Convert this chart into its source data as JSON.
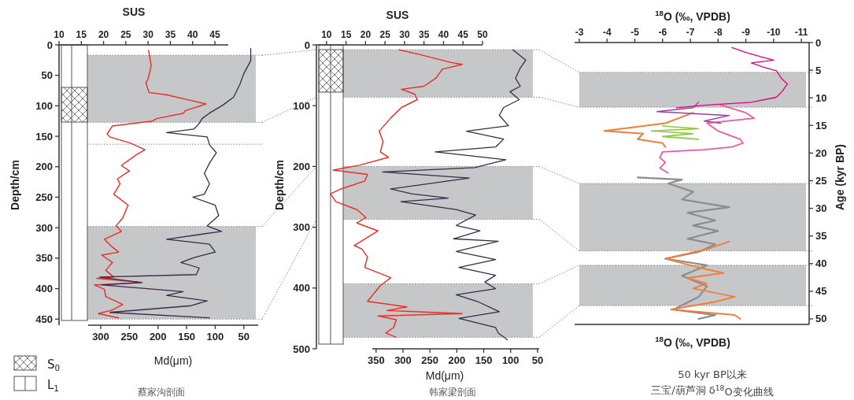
{
  "chart_data": [
    {
      "type": "line",
      "orientation": "horizontal",
      "x2label": "SUS",
      "xlabel": "Md(μm)",
      "ylabel": "Depth/cm",
      "annotations": [
        "S$_{0}$",
        "L$_{1}$",
        "蔡家沟剖面"
      ],
      "ylim": [
        460,
        0
      ],
      "yticks": [
        0,
        50,
        100,
        150,
        200,
        250,
        300,
        350,
        400,
        450
      ],
      "x2lim": [
        10,
        48
      ],
      "x2ticks": [
        10,
        15,
        20,
        25,
        30,
        35,
        40,
        45
      ],
      "xlim": [
        322,
        25
      ],
      "xticks": [
        300,
        250,
        200,
        150,
        100,
        50
      ],
      "bands": [
        {
          "axis": "y",
          "from": 17,
          "to": 127,
          "color": "#c6c7c9"
        },
        {
          "axis": "y",
          "from": 298,
          "to": 450,
          "color": "#c6c7c9"
        }
      ],
      "ref_lines": [
        {
          "axis": "y",
          "value": 163,
          "line_style": "dotted"
        }
      ],
      "series": [
        {
          "color": "#e8302a",
          "axis": "x2",
          "x": [
            9,
            34,
            56,
            62,
            78,
            82,
            90,
            97,
            108,
            112,
            121,
            125,
            133,
            146,
            151,
            161,
            172,
            181,
            198,
            207,
            220,
            228,
            245,
            263,
            284,
            297,
            306,
            319,
            332,
            340,
            345,
            357,
            370,
            381,
            383,
            390,
            394,
            401,
            413,
            426,
            435,
            441,
            448
          ],
          "values": [
            30.1,
            30.7,
            30,
            29.5,
            30.2,
            34.2,
            38.9,
            43,
            38.3,
            38,
            31.9,
            31,
            22,
            20.8,
            21.4,
            26,
            29.3,
            27.2,
            24,
            25.8,
            23.1,
            23.7,
            22.3,
            25.5,
            24.3,
            22.8,
            24,
            20.2,
            22,
            23.4,
            19.6,
            22,
            20.5,
            22.3,
            18.5,
            28.7,
            17.9,
            20.2,
            20.5,
            24.3,
            22,
            18.8,
            23.4
          ]
        },
        {
          "color": "#3a2a4a",
          "x": [
            6,
            26,
            47,
            65,
            86,
            99,
            112,
            121,
            129,
            138,
            144,
            151,
            164,
            177,
            194,
            211,
            228,
            245,
            250,
            263,
            280,
            297,
            306,
            319,
            327,
            340,
            349,
            357,
            366,
            377,
            381,
            390,
            394,
            405,
            411,
            420,
            428,
            439,
            448
          ],
          "values": [
            38,
            38,
            50,
            57,
            68,
            87,
            110,
            123,
            128,
            137,
            185,
            114,
            110,
            98,
            110,
            119,
            110,
            119,
            139,
            100,
            94,
            114,
            89,
            185,
            110,
            100,
            137,
            160,
            128,
            133,
            302,
            229,
            298,
            156,
            185,
            114,
            142,
            284,
            110
          ]
        }
      ]
    },
    {
      "type": "line",
      "orientation": "horizontal",
      "x2label": "SUS",
      "xlabel": "Md(μm)",
      "ylabel": "Depth/cm",
      "annotations": [
        "韩家梁剖面"
      ],
      "ylim": [
        500,
        0
      ],
      "yticks": [
        0,
        100,
        200,
        300,
        400,
        500
      ],
      "x2lim": [
        7.4,
        50
      ],
      "x2ticks": [
        10,
        15,
        20,
        25,
        30,
        35,
        40,
        45,
        50
      ],
      "xlim": [
        357,
        47
      ],
      "xticks": [
        350,
        300,
        250,
        200,
        150,
        100,
        50
      ],
      "bands": [
        {
          "axis": "y",
          "from": 8,
          "to": 86,
          "color": "#c6c7c9"
        },
        {
          "axis": "y",
          "from": 200,
          "to": 287,
          "color": "#c6c7c9"
        },
        {
          "axis": "y",
          "from": 393,
          "to": 481,
          "color": "#c6c7c9"
        }
      ],
      "series": [
        {
          "color": "#e8302a",
          "axis": "x2",
          "x": [
            8,
            16,
            29,
            32,
            40,
            55,
            68,
            73,
            81,
            90,
            103,
            120,
            142,
            159,
            176,
            185,
            198,
            206,
            213,
            224,
            237,
            245,
            258,
            271,
            284,
            293,
            306,
            330,
            336,
            349,
            366,
            383,
            396,
            422,
            431,
            437,
            442,
            446,
            452,
            465,
            474,
            481
          ],
          "values": [
            28.6,
            34,
            42,
            44.8,
            39.7,
            38,
            35,
            29.2,
            32.6,
            33.3,
            29.2,
            26.5,
            23.5,
            24.5,
            23.8,
            25.9,
            18.4,
            11.7,
            20.5,
            19.8,
            13.7,
            11,
            12.4,
            17.8,
            20.1,
            17.8,
            23.2,
            17.1,
            19.1,
            20.5,
            19.8,
            26.5,
            23.8,
            20.5,
            30.6,
            25.5,
            44.8,
            23.2,
            27.9,
            27.2,
            25.2,
            27.9
          ]
        },
        {
          "color": "#3a2a4a",
          "x": [
            8,
            25,
            38,
            55,
            68,
            77,
            90,
            103,
            116,
            133,
            142,
            155,
            168,
            176,
            189,
            202,
            209,
            219,
            237,
            245,
            252,
            258,
            271,
            280,
            297,
            306,
            319,
            323,
            340,
            353,
            366,
            379,
            390,
            401,
            411,
            422,
            439,
            450,
            465,
            474,
            485
          ],
          "values": [
            96,
            72,
            82,
            91,
            82,
            101,
            84,
            113,
            121,
            104,
            182,
            113,
            128,
            240,
            109,
            167,
            338,
            177,
            323,
            284,
            216,
            304,
            201,
            165,
            201,
            157,
            206,
            123,
            201,
            128,
            196,
            128,
            148,
            128,
            201,
            162,
            121,
            196,
            128,
            123,
            106
          ]
        }
      ]
    },
    {
      "type": "line",
      "orientation": "horizontal",
      "x2label": "$^{18}$O (‰, VPDB)",
      "xlabel": "$^{18}$O (‰, VPDB)",
      "ylabel": "Age (kyr BP)",
      "annotations": [
        "50 kyr BP以来",
        "三宝/葫芦洞 δ$^{18}$O变化曲线"
      ],
      "ylim": [
        51,
        0
      ],
      "yticks": [
        0,
        5,
        10,
        15,
        20,
        25,
        30,
        35,
        40,
        45,
        50
      ],
      "x2lim": [
        -2.83,
        -11.28
      ],
      "x2ticks": [
        -3,
        -4,
        -5,
        -6,
        -7,
        -8,
        -9,
        -10,
        -11
      ],
      "bands": [
        {
          "axis": "y",
          "from": 5.4,
          "to": 11.7,
          "color": "#c6c7c9"
        },
        {
          "axis": "y",
          "from": 25.5,
          "to": 37.7,
          "color": "#c6c7c9"
        },
        {
          "axis": "y",
          "from": 40.3,
          "to": 47.6,
          "color": "#c6c7c9"
        }
      ],
      "series": [
        {
          "color": "#8c8c8c",
          "axis": "x2",
          "x": [
            24.4,
            24.8,
            25.5,
            27,
            28.4,
            29.8,
            30.8,
            32.2,
            33.1,
            34.1,
            35.5,
            36.5,
            37.9,
            39.1,
            40.3,
            42.2,
            44.1,
            46,
            48.3,
            49.3,
            50
          ],
          "values": [
            -5.1,
            -6.7,
            -6.2,
            -7.1,
            -6.7,
            -8.4,
            -6.9,
            -7.9,
            -7.1,
            -8,
            -6.9,
            -7.9,
            -7.3,
            -6.1,
            -7.6,
            -6.7,
            -7.6,
            -7.3,
            -6.4,
            -7.9,
            -7.3
          ]
        },
        {
          "color": "#f07f3c",
          "axis": "x2",
          "x": [
            12.7,
            14.6,
            16,
            16.5,
            17.5,
            18.2,
            18.9
          ],
          "values": [
            -7.1,
            -6.1,
            -3.9,
            -5.3,
            -5.1,
            -6,
            -6.1
          ]
        },
        {
          "color": "#f07f3c",
          "axis": "x2",
          "x": [
            36,
            37.4,
            39.1,
            40.7,
            41.7,
            42.6,
            43.6,
            44.5,
            46,
            46.9,
            48.3,
            49.3,
            50
          ],
          "values": [
            -8.4,
            -7.6,
            -6.1,
            -7.3,
            -8.2,
            -6.9,
            -7.6,
            -7.1,
            -8.6,
            -7.9,
            -6.3,
            -8.6,
            -8.8
          ]
        },
        {
          "color": "#ec5aa0",
          "axis": "x2",
          "x": [
            11.3,
            12.7,
            13.7,
            14.6,
            16,
            17.5,
            18.2,
            18.9,
            19.4,
            19.8,
            20.8,
            21.7,
            22.7,
            23.6
          ],
          "values": [
            -8.1,
            -9,
            -9.3,
            -7.6,
            -8,
            -8.8,
            -8.9,
            -8.5,
            -7.5,
            -6,
            -5.9,
            -6.1,
            -5.9,
            -6.2
          ]
        },
        {
          "color": "#8cc63f",
          "axis": "x2",
          "x": [
            15.1,
            15.6,
            16,
            16.5,
            17,
            17.5
          ],
          "values": [
            -6,
            -7.3,
            -5.6,
            -7.1,
            -6,
            -7.3
          ]
        },
        {
          "color": "#9b3fa0",
          "axis": "x2",
          "x": [
            10.8,
            11.8,
            12.5,
            13.2,
            14.2,
            14.6
          ],
          "values": [
            -7.3,
            -7.1,
            -5.8,
            -8.4,
            -7.5,
            -8.1
          ]
        },
        {
          "color": "#e4007c",
          "axis": "x2",
          "x": [
            0.9,
            1.8,
            2.5,
            3.2,
            3.7,
            4.4,
            5.1,
            6.6,
            7.5,
            8.9,
            9.9,
            10.8,
            11.3,
            11.8
          ],
          "values": [
            -8.5,
            -9,
            -9.5,
            -10,
            -9.2,
            -9.6,
            -10.1,
            -10.3,
            -10.5,
            -10.3,
            -10.1,
            -9.2,
            -7.6,
            -6.5
          ]
        }
      ]
    }
  ]
}
